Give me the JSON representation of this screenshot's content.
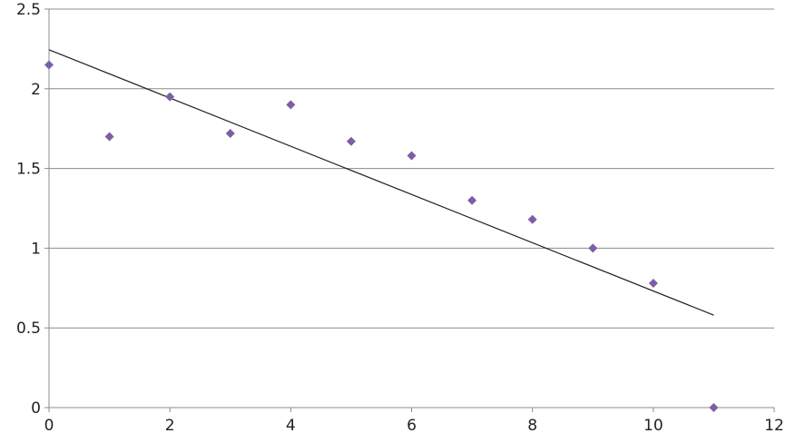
{
  "chart_data": {
    "type": "scatter",
    "title": "",
    "xlabel": "",
    "ylabel": "",
    "xlim": [
      0,
      12
    ],
    "ylim": [
      0,
      2.5
    ],
    "x_ticks": [
      0,
      2,
      4,
      6,
      8,
      10,
      12
    ],
    "y_ticks": [
      0,
      0.5,
      1,
      1.5,
      2,
      2.5
    ],
    "x_tick_labels": [
      "0",
      "2",
      "4",
      "6",
      "8",
      "10",
      "12"
    ],
    "y_tick_labels": [
      "0",
      "0.5",
      "1",
      "1.5",
      "2",
      "2.5"
    ],
    "grid": "horizontal",
    "legend": "none",
    "series": [
      {
        "marker": "diamond",
        "color": "#7b5ea7",
        "points": [
          {
            "x": 0,
            "y": 2.15
          },
          {
            "x": 1,
            "y": 1.7
          },
          {
            "x": 2,
            "y": 1.95
          },
          {
            "x": 3,
            "y": 1.72
          },
          {
            "x": 4,
            "y": 1.9
          },
          {
            "x": 5,
            "y": 1.67
          },
          {
            "x": 6,
            "y": 1.58
          },
          {
            "x": 7,
            "y": 1.3
          },
          {
            "x": 8,
            "y": 1.18
          },
          {
            "x": 9,
            "y": 1.0
          },
          {
            "x": 10,
            "y": 0.78
          },
          {
            "x": 11,
            "y": 0.0
          }
        ]
      }
    ],
    "trendline": {
      "type": "linear",
      "color": "#222222",
      "from": {
        "x": 0,
        "y": 2.245
      },
      "to": {
        "x": 11,
        "y": 0.58
      }
    }
  }
}
